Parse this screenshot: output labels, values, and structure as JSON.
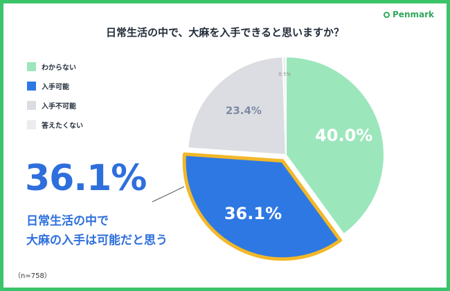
{
  "brand": {
    "name": "Penmark",
    "color": "#2fa85a"
  },
  "chart_data": {
    "type": "pie",
    "title": "日常生活の中で、大麻を入手できると思いますか？",
    "categories": [
      "わからない",
      "入手可能",
      "入手不可能",
      "答えたくない"
    ],
    "values": [
      40.0,
      36.1,
      23.4,
      0.5
    ],
    "labels": [
      "40.0%",
      "36.1%",
      "23.4%",
      "0.5%"
    ],
    "colors": [
      "#9ce6bc",
      "#2e78e3",
      "#dcdde2",
      "#ebecee"
    ],
    "highlight": {
      "category": "入手可能",
      "outline_color": "#f2b829"
    },
    "legend_position": "left"
  },
  "callout": {
    "percent": "36.1%",
    "line1": "日常生活の中で",
    "line2": "大麻の入手は可能だと思う"
  },
  "sample_note": "（n=758）"
}
